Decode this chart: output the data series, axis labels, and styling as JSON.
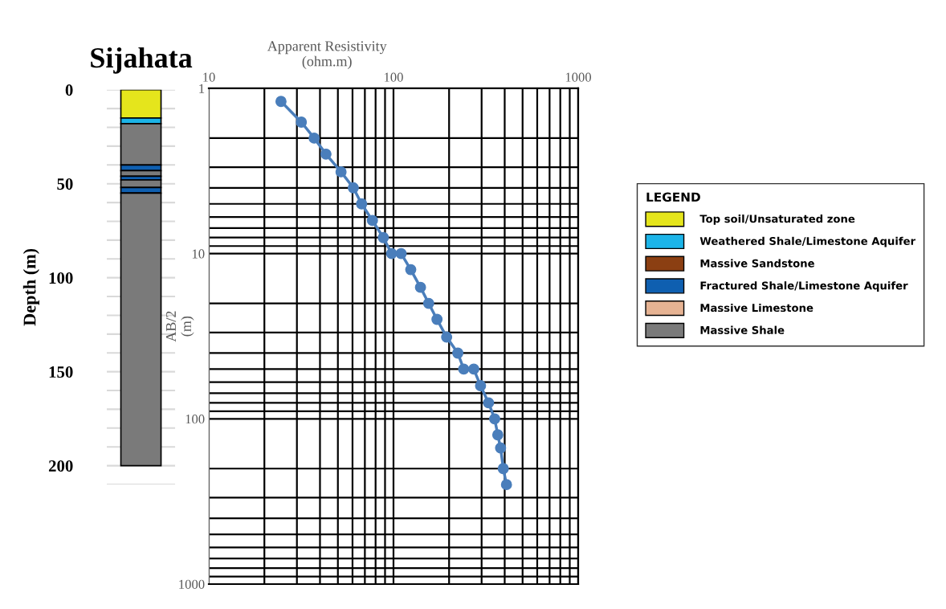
{
  "chart_data": [
    {
      "type": "bar",
      "stacked": true,
      "title": "Sijahata",
      "ylabel": "Depth (m)",
      "legend_title": "LEGEND",
      "legend": "right",
      "categories": [
        null
      ],
      "ylim": [
        210,
        0
      ],
      "yticks": [
        0,
        {
          "value": 10,
          "label": null
        },
        {
          "value": 20,
          "label": null
        },
        {
          "value": 30,
          "label": null
        },
        {
          "value": 40,
          "label": null
        },
        50,
        {
          "value": 60,
          "label": null
        },
        {
          "value": 70,
          "label": null
        },
        {
          "value": 80,
          "label": null
        },
        {
          "value": 90,
          "label": null
        },
        100,
        {
          "value": 110,
          "label": null
        },
        {
          "value": 120,
          "label": null
        },
        {
          "value": 130,
          "label": null
        },
        {
          "value": 140,
          "label": null
        },
        150,
        {
          "value": 160,
          "label": null
        },
        {
          "value": 170,
          "label": null
        },
        {
          "value": 180,
          "label": null
        },
        {
          "value": 190,
          "label": null
        },
        200,
        {
          "value": 210,
          "label": null
        }
      ],
      "grid": "y",
      "tick_labels": "y",
      "series": [
        {
          "name": "Top soil/Unsaturated zone",
          "color": "#e5e51c",
          "values": [
            15
          ]
        },
        {
          "name": "Weathered Shale/Limestone Aquifer",
          "color": "#1cb4e8",
          "values": [
            3
          ]
        },
        {
          "name": "Massive Sandstone",
          "color": "#8b3f12",
          "values": [
            0
          ]
        },
        {
          "color": "#7a7a7a",
          "values": [
            22
          ]
        },
        {
          "name": "Fractured Shale/Limestone Aquifer",
          "color": "#0f5fb0",
          "values": [
            3
          ]
        },
        {
          "color": "#7a7a7a",
          "values": [
            3
          ]
        },
        {
          "color": "#0f5fb0",
          "values": [
            2
          ]
        },
        {
          "color": "#7a7a7a",
          "values": [
            4
          ]
        },
        {
          "color": "#0f5fb0",
          "values": [
            3
          ]
        },
        {
          "name": "Massive Limestone",
          "color": "#e6b393",
          "values": [
            0
          ]
        },
        {
          "name": "Massive Shale",
          "color": "#7a7a7a",
          "values": [
            145
          ]
        }
      ]
    },
    {
      "type": "line",
      "xlabel": "Apparent Resistivity\n(ohm.m)",
      "ylabel": "AB/2\n(m)",
      "log": "xy",
      "marker": "circle",
      "grid": true,
      "color": "#4a7ebb",
      "xlim": [
        10,
        1000
      ],
      "ylim": [
        1000,
        1
      ],
      "xticks": [
        10,
        {
          "value": 20,
          "label": null
        },
        {
          "value": 30,
          "label": null
        },
        {
          "value": 40,
          "label": null
        },
        {
          "value": 50,
          "label": null
        },
        {
          "value": 60,
          "label": null
        },
        {
          "value": 70,
          "label": null
        },
        {
          "value": 80,
          "label": null
        },
        {
          "value": 90,
          "label": null
        },
        100,
        {
          "value": 200,
          "label": null
        },
        {
          "value": 300,
          "label": null
        },
        {
          "value": 400,
          "label": null
        },
        {
          "value": 500,
          "label": null
        },
        {
          "value": 600,
          "label": null
        },
        {
          "value": 700,
          "label": null
        },
        {
          "value": 800,
          "label": null
        },
        {
          "value": 900,
          "label": null
        },
        1000
      ],
      "yticks": [
        1,
        {
          "value": 2,
          "label": null
        },
        {
          "value": 3,
          "label": null
        },
        {
          "value": 4,
          "label": null
        },
        {
          "value": 5,
          "label": null
        },
        {
          "value": 6,
          "label": null
        },
        {
          "value": 7,
          "label": null
        },
        {
          "value": 8,
          "label": null
        },
        {
          "value": 9,
          "label": null
        },
        10,
        {
          "value": 20,
          "label": null
        },
        {
          "value": 30,
          "label": null
        },
        {
          "value": 40,
          "label": null
        },
        {
          "value": 50,
          "label": null
        },
        {
          "value": 60,
          "label": null
        },
        {
          "value": 70,
          "label": null
        },
        {
          "value": 80,
          "label": null
        },
        {
          "value": 90,
          "label": null
        },
        100,
        {
          "value": 200,
          "label": null
        },
        {
          "value": 300,
          "label": null
        },
        {
          "value": 400,
          "label": null
        },
        {
          "value": 500,
          "label": null
        },
        {
          "value": 600,
          "label": null
        },
        {
          "value": 700,
          "label": null
        },
        {
          "value": 800,
          "label": null
        },
        {
          "value": 900,
          "label": null
        },
        1000
      ],
      "x": [
        24.6,
        31.7,
        37.2,
        43.1,
        52.0,
        60.6,
        67.2,
        76.9,
        88.1,
        97.7,
        110,
        124,
        140,
        155,
        172,
        194,
        223,
        240,
        272,
        296,
        327,
        353,
        367,
        380,
        393,
        409
      ],
      "values": [
        1.2,
        1.6,
        2,
        2.5,
        3.2,
        4,
        5,
        6.3,
        8,
        10,
        10,
        12.5,
        16,
        20,
        25,
        32,
        40,
        50,
        50,
        63,
        80,
        100,
        125,
        150,
        200,
        250
      ]
    }
  ]
}
